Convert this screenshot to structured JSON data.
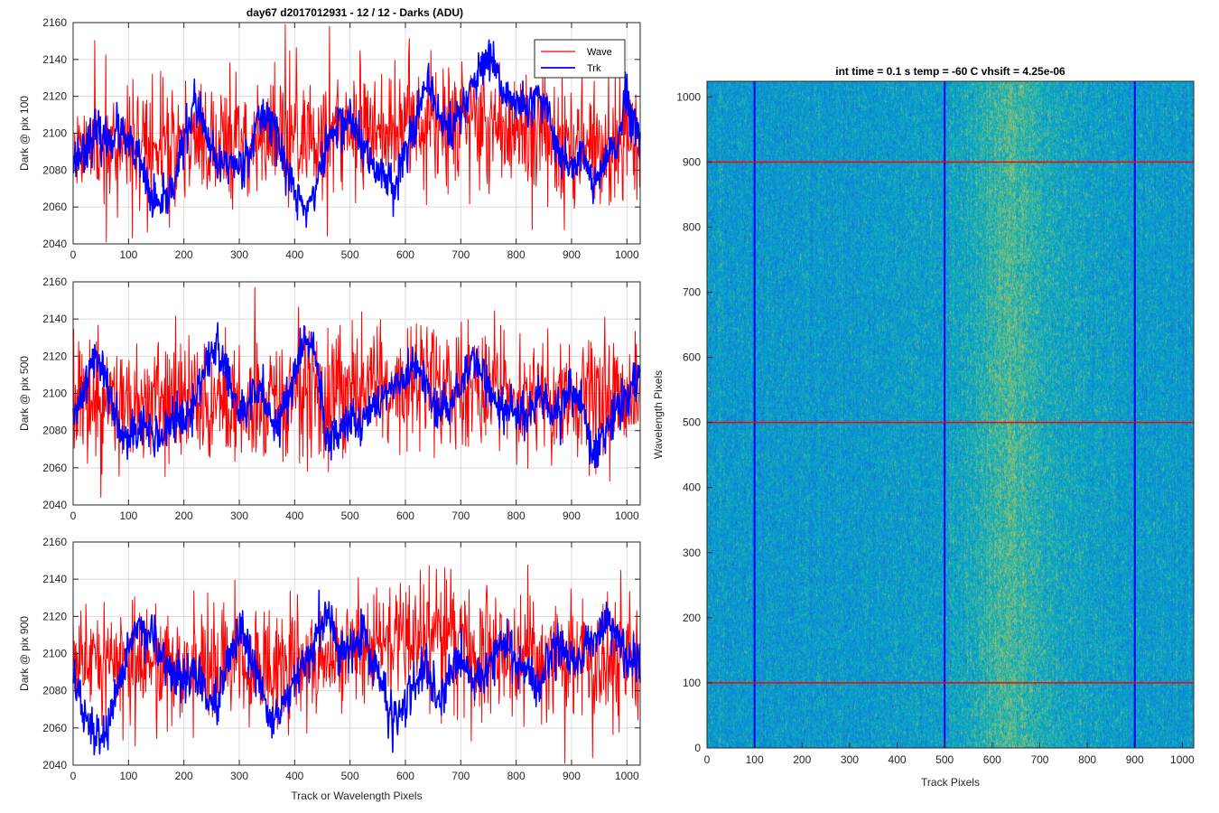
{
  "figure": {
    "title": "day67 d2017012931 - 12 / 12 - Darks (ADU)"
  },
  "chart_data": [
    {
      "type": "line",
      "title": "day67 d2017012931 - 12 / 12 - Darks (ADU)",
      "xlabel": "",
      "ylabel": "Dark @ pix 100",
      "xlim": [
        0,
        1024
      ],
      "ylim": [
        2040,
        2160
      ],
      "xticks": [
        0,
        100,
        200,
        300,
        400,
        500,
        600,
        700,
        800,
        900,
        1000
      ],
      "yticks": [
        2040,
        2060,
        2080,
        2100,
        2120,
        2140,
        2160
      ],
      "grid": true,
      "legend": {
        "position": "top-right",
        "entries": [
          "Wave",
          "Trk"
        ]
      },
      "series": [
        {
          "name": "Wave",
          "color": "#ff0000",
          "trend_x": [
            0,
            100,
            200,
            300,
            400,
            500,
            600,
            700,
            800,
            900,
            1024
          ],
          "trend_y": [
            2093,
            2094,
            2094,
            2096,
            2098,
            2102,
            2106,
            2108,
            2100,
            2096,
            2093
          ],
          "noise": 16,
          "seed": 11
        },
        {
          "name": "Trk",
          "color": "#0000ff",
          "anchors_x": [
            0,
            20,
            40,
            60,
            80,
            100,
            120,
            140,
            160,
            180,
            200,
            220,
            240,
            260,
            280,
            300,
            320,
            340,
            360,
            380,
            400,
            420,
            440,
            460,
            480,
            500,
            520,
            540,
            560,
            580,
            600,
            620,
            640,
            660,
            680,
            700,
            720,
            740,
            760,
            780,
            800,
            820,
            840,
            860,
            880,
            900,
            920,
            940,
            960,
            980,
            1000,
            1024
          ],
          "anchors_y": [
            2085,
            2092,
            2100,
            2095,
            2102,
            2093,
            2085,
            2065,
            2058,
            2072,
            2095,
            2118,
            2098,
            2082,
            2085,
            2082,
            2093,
            2110,
            2108,
            2085,
            2068,
            2058,
            2072,
            2096,
            2105,
            2108,
            2095,
            2082,
            2078,
            2072,
            2090,
            2110,
            2125,
            2112,
            2100,
            2112,
            2125,
            2138,
            2135,
            2120,
            2118,
            2112,
            2120,
            2108,
            2088,
            2082,
            2090,
            2070,
            2085,
            2092,
            2118,
            2092
          ],
          "noise": 6,
          "seed": 23
        }
      ]
    },
    {
      "type": "line",
      "title": "",
      "xlabel": "",
      "ylabel": "Dark @ pix 500",
      "xlim": [
        0,
        1024
      ],
      "ylim": [
        2040,
        2160
      ],
      "xticks": [
        0,
        100,
        200,
        300,
        400,
        500,
        600,
        700,
        800,
        900,
        1000
      ],
      "yticks": [
        2040,
        2060,
        2080,
        2100,
        2120,
        2140,
        2160
      ],
      "grid": true,
      "series": [
        {
          "name": "Wave",
          "color": "#ff0000",
          "trend_x": [
            0,
            100,
            200,
            300,
            400,
            500,
            600,
            700,
            800,
            900,
            1024
          ],
          "trend_y": [
            2095,
            2094,
            2093,
            2094,
            2097,
            2102,
            2108,
            2105,
            2098,
            2096,
            2095
          ],
          "noise": 16,
          "seed": 37
        },
        {
          "name": "Trk",
          "color": "#0000ff",
          "anchors_x": [
            0,
            20,
            40,
            60,
            80,
            100,
            120,
            140,
            160,
            180,
            200,
            220,
            240,
            260,
            280,
            300,
            320,
            340,
            360,
            380,
            400,
            420,
            440,
            460,
            480,
            500,
            520,
            540,
            560,
            580,
            600,
            620,
            640,
            660,
            680,
            700,
            720,
            740,
            760,
            780,
            800,
            820,
            840,
            860,
            880,
            900,
            920,
            940,
            960,
            980,
            1000,
            1024
          ],
          "anchors_y": [
            2082,
            2105,
            2120,
            2108,
            2085,
            2078,
            2082,
            2080,
            2075,
            2088,
            2082,
            2095,
            2118,
            2125,
            2108,
            2088,
            2095,
            2102,
            2085,
            2090,
            2112,
            2128,
            2118,
            2070,
            2082,
            2090,
            2082,
            2092,
            2100,
            2102,
            2108,
            2115,
            2100,
            2090,
            2095,
            2105,
            2118,
            2110,
            2098,
            2090,
            2092,
            2085,
            2100,
            2090,
            2088,
            2105,
            2090,
            2065,
            2078,
            2092,
            2098,
            2112
          ],
          "noise": 6,
          "seed": 41
        }
      ]
    },
    {
      "type": "line",
      "title": "",
      "xlabel": "Track or Wavelength Pixels",
      "ylabel": "Dark @ pix 900",
      "xlim": [
        0,
        1024
      ],
      "ylim": [
        2040,
        2160
      ],
      "xticks": [
        0,
        100,
        200,
        300,
        400,
        500,
        600,
        700,
        800,
        900,
        1000
      ],
      "yticks": [
        2040,
        2060,
        2080,
        2100,
        2120,
        2140,
        2160
      ],
      "grid": true,
      "series": [
        {
          "name": "Wave",
          "color": "#ff0000",
          "trend_x": [
            0,
            100,
            200,
            300,
            400,
            500,
            600,
            700,
            800,
            900,
            1024
          ],
          "trend_y": [
            2097,
            2096,
            2094,
            2095,
            2097,
            2102,
            2110,
            2104,
            2098,
            2096,
            2098
          ],
          "noise": 16,
          "seed": 53
        },
        {
          "name": "Trk",
          "color": "#0000ff",
          "anchors_x": [
            0,
            20,
            40,
            60,
            80,
            100,
            120,
            140,
            160,
            180,
            200,
            220,
            240,
            260,
            280,
            300,
            320,
            340,
            360,
            380,
            400,
            420,
            440,
            460,
            480,
            500,
            520,
            540,
            560,
            580,
            600,
            620,
            640,
            660,
            680,
            700,
            720,
            740,
            760,
            780,
            800,
            820,
            840,
            860,
            880,
            900,
            920,
            940,
            960,
            980,
            1000,
            1024
          ],
          "anchors_y": [
            2090,
            2065,
            2055,
            2058,
            2075,
            2105,
            2115,
            2110,
            2095,
            2090,
            2085,
            2090,
            2078,
            2070,
            2095,
            2110,
            2098,
            2080,
            2065,
            2070,
            2085,
            2092,
            2112,
            2120,
            2100,
            2105,
            2110,
            2098,
            2080,
            2065,
            2072,
            2085,
            2090,
            2072,
            2090,
            2100,
            2085,
            2090,
            2098,
            2108,
            2095,
            2090,
            2080,
            2100,
            2105,
            2095,
            2100,
            2108,
            2118,
            2112,
            2098,
            2095
          ],
          "noise": 6,
          "seed": 67
        }
      ]
    },
    {
      "type": "heatmap",
      "title": "int time = 0.1 s   temp = -60 C   vhsift = 4.25e-06",
      "xlabel": "Track Pixels",
      "ylabel": "Wavelength Pixels",
      "xlim": [
        0,
        1024
      ],
      "ylim": [
        0,
        1024
      ],
      "xticks": [
        0,
        100,
        200,
        300,
        400,
        500,
        600,
        700,
        800,
        900,
        1000
      ],
      "yticks": [
        0,
        100,
        200,
        300,
        400,
        500,
        600,
        700,
        800,
        900,
        1000
      ],
      "grid": false,
      "colormap": "parula",
      "column_profile_x": [
        0,
        200,
        400,
        500,
        560,
        600,
        640,
        680,
        720,
        800,
        900,
        1024
      ],
      "column_profile": [
        0.43,
        0.43,
        0.45,
        0.46,
        0.52,
        0.58,
        0.62,
        0.58,
        0.52,
        0.47,
        0.45,
        0.44
      ],
      "marker_columns": [
        100,
        500,
        900
      ],
      "marker_column_color": "#0000ff",
      "marker_rows": [
        100,
        500,
        900
      ],
      "marker_row_color": "#ff0000"
    }
  ]
}
